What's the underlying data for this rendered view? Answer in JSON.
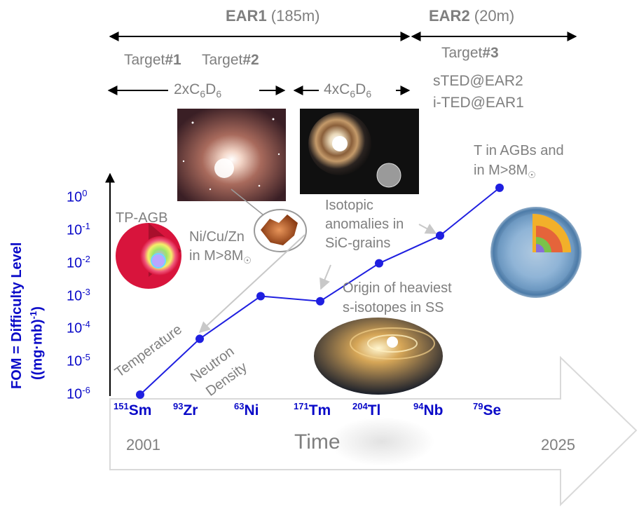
{
  "chart_data": {
    "type": "line",
    "categories": [
      "151Sm",
      "93Zr",
      "63Ni",
      "171Tm",
      "204Tl",
      "94Nb",
      "79Se"
    ],
    "category_parts": [
      {
        "mass": "151",
        "symbol": "Sm"
      },
      {
        "mass": "93",
        "symbol": "Zr"
      },
      {
        "mass": "63",
        "symbol": "Ni"
      },
      {
        "mass": "171",
        "symbol": "Tm"
      },
      {
        "mass": "204",
        "symbol": "Tl"
      },
      {
        "mass": "94",
        "symbol": "Nb"
      },
      {
        "mass": "79",
        "symbol": "Se"
      }
    ],
    "values": [
      1e-06,
      5e-05,
      0.001,
      0.0007,
      0.01,
      0.07,
      2
    ],
    "ylabel_line1": "FOM = Difficulty Level",
    "ylabel_line2": "((mg·mb)",
    "ylabel_line2_sup": "-1",
    "ylabel_line2_end": ")",
    "y_scale": "log",
    "ylim": [
      1e-06,
      1
    ],
    "yticks": [
      {
        "base": "10",
        "exp": "0"
      },
      {
        "base": "10",
        "exp": "-1"
      },
      {
        "base": "10",
        "exp": "-2"
      },
      {
        "base": "10",
        "exp": "-3"
      },
      {
        "base": "10",
        "exp": "-4"
      },
      {
        "base": "10",
        "exp": "-5"
      },
      {
        "base": "10",
        "exp": "-6"
      }
    ],
    "xlabel": "Time",
    "x_start": "2001",
    "x_end": "2025",
    "line_color": "#1f1fe0",
    "marker_color": "#1f1fe0",
    "axis_color": "#000000"
  },
  "header": {
    "ear1_bold": "EAR1",
    "ear1_rest": " (185m)",
    "ear2_bold": "EAR2",
    "ear2_rest": " (20m)",
    "target1_a": "Target",
    "target1_b": "#1",
    "target2_a": "Target",
    "target2_b": "#2",
    "target3_a": "Target",
    "target3_b": "#3",
    "det1_a": "2xC",
    "det1_s1": "6",
    "det1_b": "D",
    "det1_s2": "6",
    "det2_a": "4xC",
    "det2_s1": "6",
    "det2_b": "D",
    "det2_s2": "6",
    "sted": "sTED@EAR2",
    "ited": "i-TED@EAR1"
  },
  "annotations": {
    "tp_agb": "TP-AGB",
    "ni_line1": "Ni/Cu/Zn",
    "ni_line2_a": "in M>8M",
    "sun_symbol": "☉",
    "iso_line1": "Isotopic",
    "iso_line2": "anomalies in",
    "iso_line3": "SiC-grains",
    "t_line1": "T in AGBs and",
    "t_line2_a": "in M>8M",
    "origin_line1": "Origin of heaviest",
    "origin_line2": "s-isotopes in SS",
    "temperature": "Temperature",
    "neutron_line1": "Neutron",
    "neutron_line2": "Density"
  },
  "colors": {
    "gray_text": "#7f7f7f",
    "blue_text": "#0a0ac8",
    "arrow_outline": "#d9d9d9"
  }
}
